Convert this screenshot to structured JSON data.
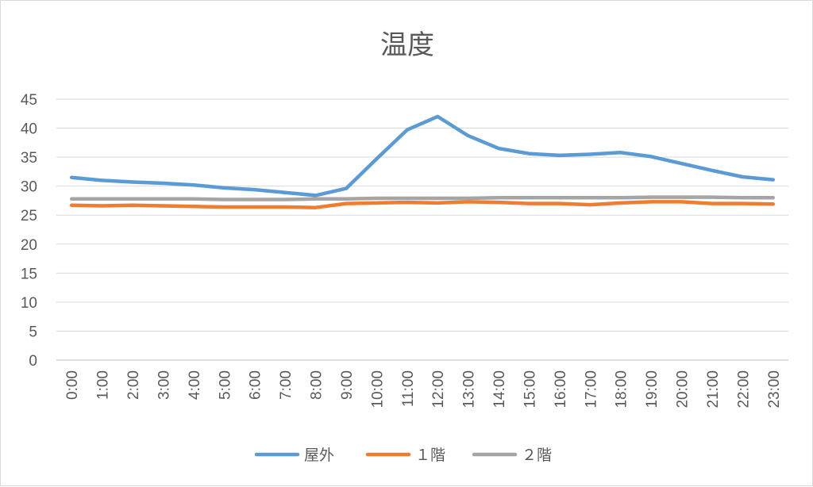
{
  "chart_data": {
    "type": "line",
    "title": "温度",
    "xlabel": "",
    "ylabel": "",
    "ylim": [
      0,
      45
    ],
    "yticks": [
      0,
      5,
      10,
      15,
      20,
      25,
      30,
      35,
      40,
      45
    ],
    "grid": true,
    "legend_position": "bottom",
    "categories": [
      "0:00",
      "1:00",
      "2:00",
      "3:00",
      "4:00",
      "5:00",
      "6:00",
      "7:00",
      "8:00",
      "9:00",
      "10:00",
      "11:00",
      "12:00",
      "13:00",
      "14:00",
      "15:00",
      "16:00",
      "17:00",
      "18:00",
      "19:00",
      "20:00",
      "21:00",
      "22:00",
      "23:00"
    ],
    "series": [
      {
        "name": "屋外",
        "color": "#5b9bd5",
        "values": [
          31.5,
          31.0,
          30.7,
          30.5,
          30.2,
          29.7,
          29.4,
          28.9,
          28.4,
          29.6,
          34.7,
          39.7,
          42.0,
          38.7,
          36.5,
          35.6,
          35.3,
          35.5,
          35.8,
          35.1,
          33.9,
          32.7,
          31.6,
          31.1
        ]
      },
      {
        "name": "１階",
        "color": "#ed7d31",
        "values": [
          26.7,
          26.6,
          26.7,
          26.6,
          26.5,
          26.4,
          26.4,
          26.4,
          26.3,
          27.0,
          27.1,
          27.2,
          27.1,
          27.3,
          27.2,
          27.0,
          27.0,
          26.8,
          27.1,
          27.3,
          27.3,
          27.0,
          27.0,
          26.9
        ]
      },
      {
        "name": "２階",
        "color": "#a5a5a5",
        "values": [
          27.8,
          27.8,
          27.8,
          27.8,
          27.8,
          27.7,
          27.7,
          27.7,
          27.8,
          27.8,
          27.9,
          27.9,
          27.9,
          27.9,
          28.0,
          28.0,
          28.0,
          28.0,
          28.0,
          28.1,
          28.1,
          28.1,
          28.0,
          28.0
        ]
      }
    ]
  }
}
